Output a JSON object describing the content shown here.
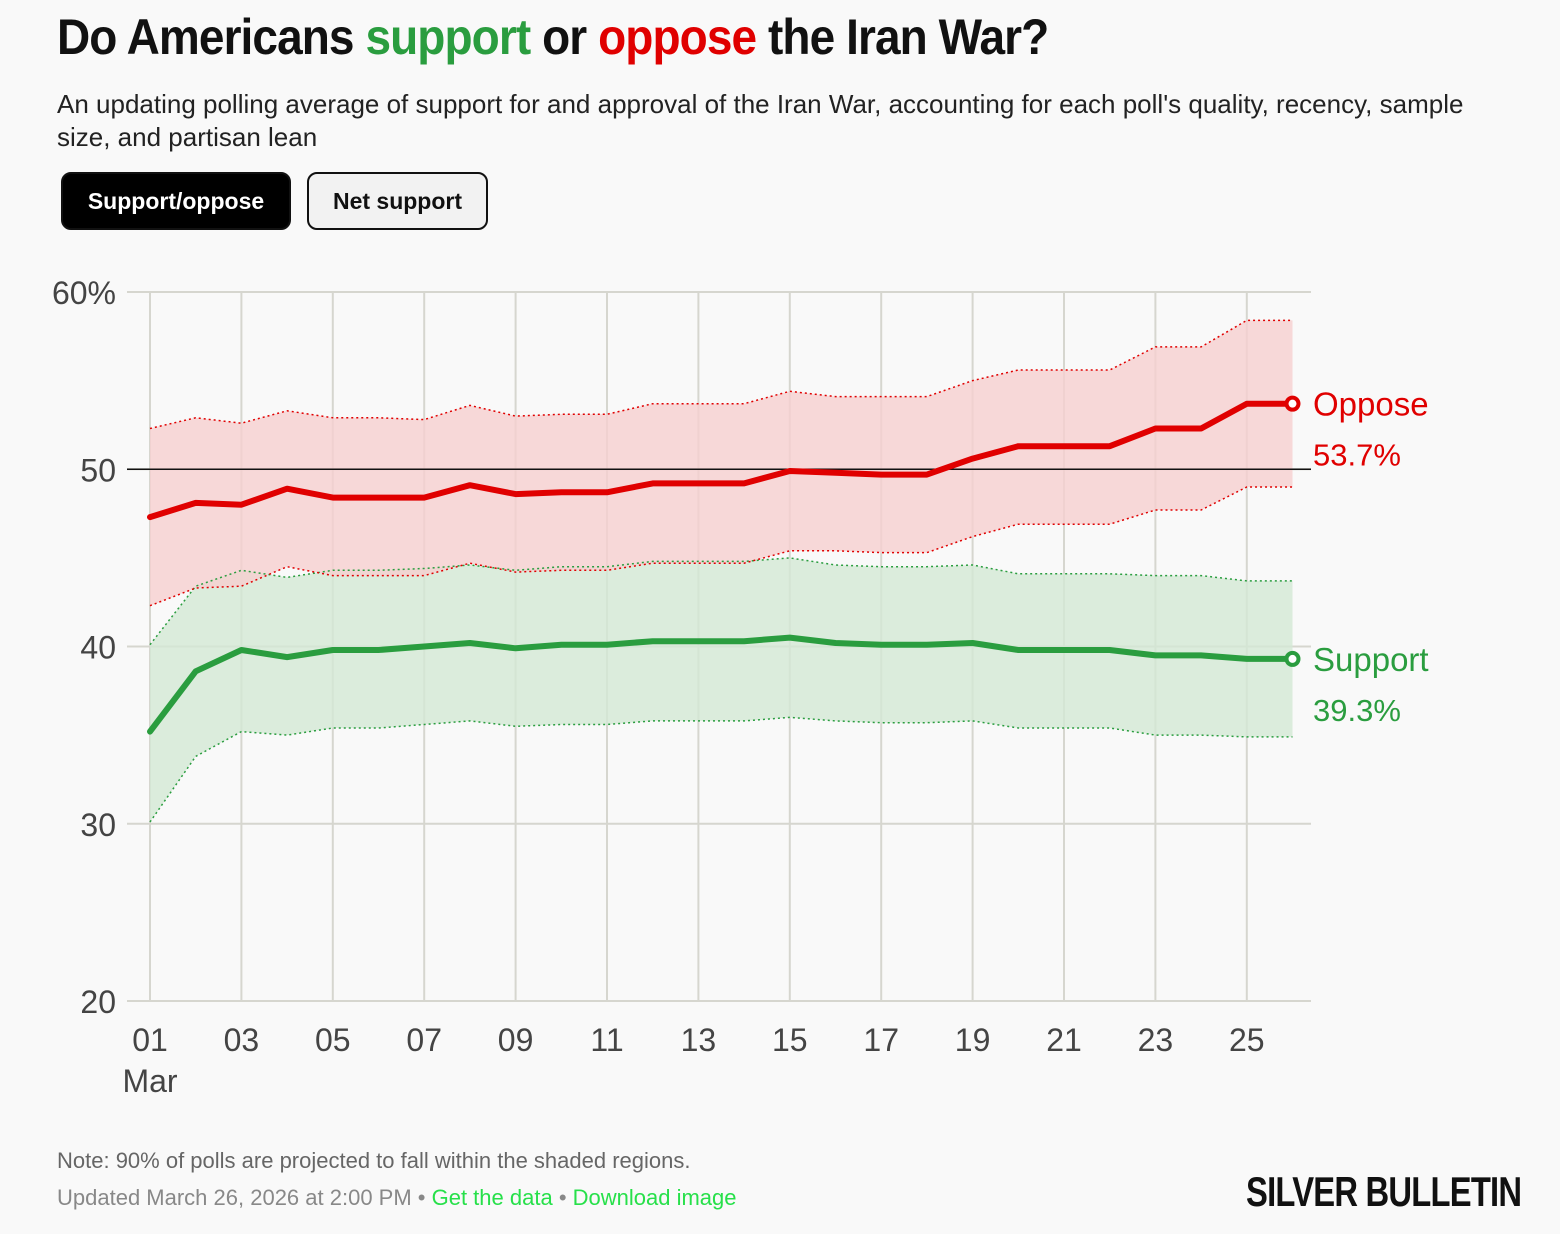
{
  "header": {
    "title_pre": "Do Americans ",
    "title_support": "support",
    "title_mid": " or ",
    "title_oppose": "oppose",
    "title_post": " the Iran War?",
    "subtitle": "An updating polling average of support for and approval of the Iran War, accounting for each poll's quality, recency, sample size, and partisan lean"
  },
  "toggles": [
    {
      "label": "Support/oppose",
      "active": true
    },
    {
      "label": "Net support",
      "active": false
    }
  ],
  "colors": {
    "support": "#2a9d3f",
    "oppose": "#e00000",
    "support_band": "#d3e8d5",
    "oppose_band": "#f6cfcf",
    "grid": "#d6d6cf",
    "link": "#27e04a"
  },
  "chart_data": {
    "type": "line",
    "title": "Do Americans support or oppose the Iran War?",
    "x": [
      1,
      2,
      3,
      4,
      5,
      6,
      7,
      8,
      9,
      10,
      11,
      12,
      13,
      14,
      15,
      16,
      17,
      18,
      19,
      20,
      21,
      22,
      23,
      24,
      25,
      26
    ],
    "x_tick_values": [
      1,
      3,
      5,
      7,
      9,
      11,
      13,
      15,
      17,
      19,
      21,
      23,
      25
    ],
    "x_tick_labels": [
      "01",
      "03",
      "05",
      "07",
      "09",
      "11",
      "13",
      "15",
      "17",
      "19",
      "21",
      "23",
      "25"
    ],
    "x_month_label": "Mar",
    "xlim": [
      1,
      27.3
    ],
    "ylim": [
      20,
      60
    ],
    "y_ticks": [
      20,
      30,
      40,
      50,
      60
    ],
    "y_tick_labels": [
      "20",
      "30",
      "40",
      "50",
      "60%"
    ],
    "reference_line": 50,
    "series": [
      {
        "name": "Oppose",
        "end_label": "53.7%",
        "values": [
          47.3,
          48.1,
          48.0,
          48.9,
          48.4,
          48.4,
          48.4,
          49.1,
          48.6,
          48.7,
          48.7,
          49.2,
          49.2,
          49.2,
          49.9,
          49.8,
          49.7,
          49.7,
          50.6,
          51.3,
          51.3,
          51.3,
          52.3,
          52.3,
          53.7,
          53.7
        ],
        "upper": [
          52.3,
          52.9,
          52.6,
          53.3,
          52.9,
          52.9,
          52.8,
          53.6,
          53.0,
          53.1,
          53.1,
          53.7,
          53.7,
          53.7,
          54.4,
          54.1,
          54.1,
          54.1,
          55.0,
          55.6,
          55.6,
          55.6,
          56.9,
          56.9,
          58.4,
          58.4
        ],
        "lower": [
          42.3,
          43.3,
          43.4,
          44.5,
          44.0,
          44.0,
          44.0,
          44.7,
          44.2,
          44.3,
          44.3,
          44.7,
          44.7,
          44.7,
          45.4,
          45.4,
          45.3,
          45.3,
          46.2,
          46.9,
          46.9,
          46.9,
          47.7,
          47.7,
          49.0,
          49.0
        ]
      },
      {
        "name": "Support",
        "end_label": "39.3%",
        "values": [
          35.2,
          38.6,
          39.8,
          39.4,
          39.8,
          39.8,
          40.0,
          40.2,
          39.9,
          40.1,
          40.1,
          40.3,
          40.3,
          40.3,
          40.5,
          40.2,
          40.1,
          40.1,
          40.2,
          39.8,
          39.8,
          39.8,
          39.5,
          39.5,
          39.3,
          39.3
        ],
        "upper": [
          40.1,
          43.4,
          44.3,
          43.9,
          44.3,
          44.3,
          44.4,
          44.6,
          44.3,
          44.5,
          44.5,
          44.8,
          44.8,
          44.8,
          45.0,
          44.6,
          44.5,
          44.5,
          44.6,
          44.1,
          44.1,
          44.1,
          44.0,
          44.0,
          43.7,
          43.7
        ],
        "lower": [
          30.1,
          33.8,
          35.2,
          35.0,
          35.4,
          35.4,
          35.6,
          35.8,
          35.5,
          35.6,
          35.6,
          35.8,
          35.8,
          35.8,
          36.0,
          35.8,
          35.7,
          35.7,
          35.8,
          35.4,
          35.4,
          35.4,
          35.0,
          35.0,
          34.9,
          34.9
        ]
      }
    ]
  },
  "footer": {
    "note": "Note: 90% of polls are projected to fall within the shaded regions.",
    "updated": "Updated March 26, 2026 at 2:00 PM",
    "separator": " • ",
    "get_data": "Get the data",
    "download": "Download image",
    "brand": "SILVER BULLETIN"
  }
}
